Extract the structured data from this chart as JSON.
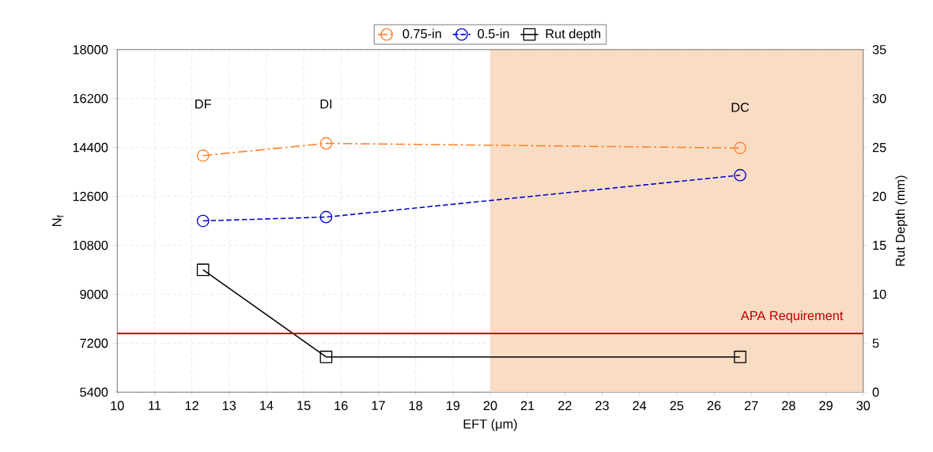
{
  "chart_data": {
    "type": "line",
    "xlabel": "EFT (μm)",
    "ylabel": "N$_{f}$",
    "y2label": "Rut Depth (mm)",
    "x": [
      12.3,
      15.6,
      26.7
    ],
    "series": [
      {
        "name": "0.75-in",
        "color": "#ff7f27",
        "values": [
          14100,
          14550,
          14380
        ],
        "marker": "circle",
        "line_style": "dashdot"
      },
      {
        "name": "0.5-in",
        "color": "#0000cc",
        "values": [
          11700,
          11840,
          13380
        ],
        "marker": "circle",
        "line_style": "dashed"
      },
      {
        "name": "Rut depth",
        "color": "#000000",
        "values": [
          12.5,
          3.6,
          3.6
        ],
        "marker": "square",
        "line_style": "solid",
        "axis": "y2"
      }
    ],
    "xlim": [
      10,
      30
    ],
    "xticks": [
      10,
      11,
      12,
      13,
      14,
      15,
      16,
      17,
      18,
      19,
      20,
      21,
      22,
      23,
      24,
      25,
      26,
      27,
      28,
      29,
      30
    ],
    "ylim": [
      5400,
      18000
    ],
    "yticks": [
      5400,
      7200,
      9000,
      10800,
      12600,
      14400,
      16200,
      18000
    ],
    "y2lim": [
      0,
      35
    ],
    "y2ticks": [
      0,
      5,
      10,
      15,
      20,
      25,
      30,
      35
    ],
    "ref_lines": [
      {
        "axis": "y2",
        "value": 6,
        "label": "APA Requirement",
        "color": "#c00000"
      }
    ],
    "bands": [
      {
        "axis": "x",
        "from": 20,
        "to": 30,
        "color": "#f9dcc4"
      }
    ],
    "annotations": [
      "DF",
      "DI",
      "DC"
    ],
    "grid": true,
    "legend": "top"
  }
}
